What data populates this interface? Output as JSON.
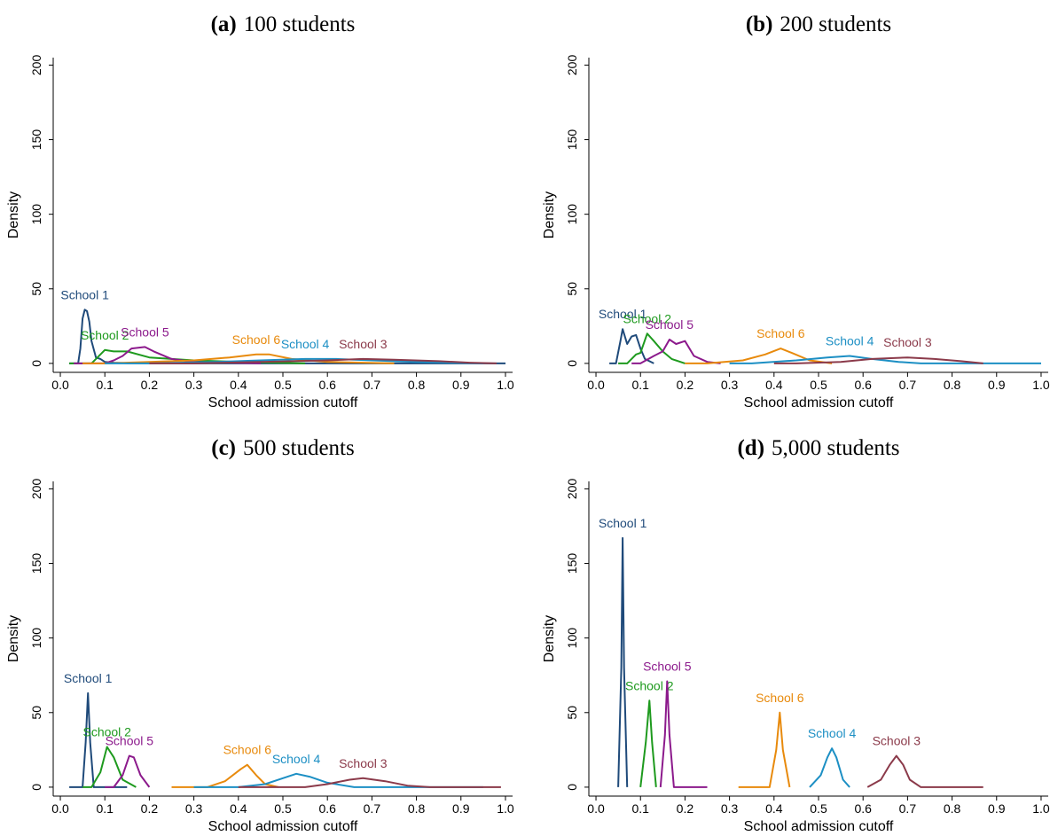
{
  "chart_data": [
    {
      "type": "line",
      "panel": "(a)",
      "title": "100 students",
      "xlabel": "School admission cutoff",
      "ylabel": "Density",
      "xlim": [
        -0.016,
        1.016
      ],
      "ylim": [
        -6,
        205
      ],
      "xticks": [
        {
          "value": 0,
          "label": "0.0"
        },
        0.1,
        0.2,
        0.3,
        0.4,
        0.5,
        0.6,
        0.7,
        0.8,
        0.9,
        {
          "value": 1,
          "label": "1.0"
        }
      ],
      "yticks": [
        0,
        50,
        100,
        150,
        200
      ],
      "series": [
        {
          "name": "School 1",
          "color": "#1f4a7a",
          "x": [
            0.02,
            0.04,
            0.045,
            0.05,
            0.055,
            0.06,
            0.065,
            0.07,
            0.08,
            0.09,
            0.1,
            0.12,
            0.15,
            0.3,
            0.6,
            1.0
          ],
          "values": [
            0,
            0,
            10,
            30,
            36,
            35,
            28,
            15,
            4,
            3,
            1,
            0.5,
            0.2,
            0,
            0,
            0
          ]
        },
        {
          "name": "School 2",
          "color": "#1e9a1e",
          "x": [
            0.02,
            0.07,
            0.1,
            0.12,
            0.15,
            0.2,
            0.25,
            0.3,
            0.4,
            0.55
          ],
          "values": [
            0,
            0,
            9,
            8,
            8,
            4,
            3,
            2,
            1,
            0
          ]
        },
        {
          "name": "School 5",
          "color": "#8c1a8c",
          "x": [
            0.03,
            0.1,
            0.12,
            0.14,
            0.16,
            0.19,
            0.21,
            0.25,
            0.3,
            0.45
          ],
          "values": [
            0,
            0,
            2,
            5,
            10,
            11,
            8,
            3,
            1,
            0
          ]
        },
        {
          "name": "School 6",
          "color": "#e88a0c",
          "x": [
            0.05,
            0.1,
            0.2,
            0.3,
            0.38,
            0.44,
            0.47,
            0.52,
            0.6,
            0.75
          ],
          "values": [
            0,
            0,
            1,
            2,
            4,
            6,
            6,
            3,
            1,
            0
          ]
        },
        {
          "name": "School 4",
          "color": "#1c8fc4",
          "x": [
            0.1,
            0.2,
            0.35,
            0.45,
            0.55,
            0.62,
            0.7,
            0.8,
            0.95
          ],
          "values": [
            0,
            0,
            1,
            2,
            3,
            3,
            2,
            1,
            0
          ]
        },
        {
          "name": "School 3",
          "color": "#8b3a4a",
          "x": [
            0.2,
            0.3,
            0.45,
            0.6,
            0.68,
            0.75,
            0.85,
            0.92,
            0.98
          ],
          "values": [
            0,
            0,
            1,
            2,
            3,
            2.5,
            1.5,
            0.5,
            0
          ]
        }
      ]
    },
    {
      "type": "line",
      "panel": "(b)",
      "title": "200 students",
      "xlabel": "School admission cutoff",
      "ylabel": "Density",
      "xlim": [
        -0.016,
        1.016
      ],
      "ylim": [
        -6,
        205
      ],
      "xticks": [
        {
          "value": 0,
          "label": "0.0"
        },
        0.1,
        0.2,
        0.3,
        0.4,
        0.5,
        0.6,
        0.7,
        0.8,
        0.9,
        {
          "value": 1,
          "label": "1.0"
        }
      ],
      "yticks": [
        0,
        50,
        100,
        150,
        200
      ],
      "series": [
        {
          "name": "School 1",
          "color": "#1f4a7a",
          "x": [
            0.03,
            0.045,
            0.055,
            0.06,
            0.07,
            0.08,
            0.09,
            0.1,
            0.11,
            0.13
          ],
          "values": [
            0,
            0,
            15,
            23,
            13,
            18,
            19,
            10,
            3,
            0
          ]
        },
        {
          "name": "School 2",
          "color": "#1e9a1e",
          "x": [
            0.05,
            0.07,
            0.09,
            0.1,
            0.115,
            0.13,
            0.15,
            0.17,
            0.2
          ],
          "values": [
            0,
            0,
            6,
            7,
            20,
            15,
            8,
            3,
            0
          ]
        },
        {
          "name": "School 5",
          "color": "#8c1a8c",
          "x": [
            0.08,
            0.1,
            0.13,
            0.15,
            0.165,
            0.18,
            0.2,
            0.22,
            0.25,
            0.28
          ],
          "values": [
            0,
            0,
            5,
            8,
            16,
            13,
            15,
            5,
            1,
            0
          ]
        },
        {
          "name": "School 6",
          "color": "#e88a0c",
          "x": [
            0.2,
            0.25,
            0.33,
            0.38,
            0.415,
            0.44,
            0.48,
            0.53
          ],
          "values": [
            0,
            0,
            2,
            6,
            10,
            7,
            2,
            0
          ]
        },
        {
          "name": "School 4",
          "color": "#1c8fc4",
          "x": [
            0.3,
            0.35,
            0.45,
            0.52,
            0.57,
            0.62,
            0.68,
            0.73,
            1.0
          ],
          "values": [
            0,
            0,
            2,
            4,
            5,
            3,
            1,
            0,
            0
          ]
        },
        {
          "name": "School 3",
          "color": "#8b3a4a",
          "x": [
            0.4,
            0.45,
            0.55,
            0.62,
            0.7,
            0.76,
            0.82,
            0.87
          ],
          "values": [
            0,
            0,
            1,
            3,
            4,
            3,
            1.5,
            0
          ]
        }
      ]
    },
    {
      "type": "line",
      "panel": "(c)",
      "title": "500 students",
      "xlabel": "School admission cutoff",
      "ylabel": "Density",
      "xlim": [
        -0.016,
        1.016
      ],
      "ylim": [
        -6,
        205
      ],
      "xticks": [
        {
          "value": 0,
          "label": "0.0"
        },
        0.1,
        0.2,
        0.3,
        0.4,
        0.5,
        0.6,
        0.7,
        0.8,
        0.9,
        {
          "value": 1,
          "label": "1.0"
        }
      ],
      "yticks": [
        0,
        50,
        100,
        150,
        200
      ],
      "series": [
        {
          "name": "School 1",
          "color": "#1f4a7a",
          "x": [
            0.02,
            0.05,
            0.057,
            0.062,
            0.067,
            0.075,
            0.15
          ],
          "values": [
            0,
            0,
            30,
            63,
            30,
            0,
            0
          ]
        },
        {
          "name": "School 2",
          "color": "#1e9a1e",
          "x": [
            0.05,
            0.07,
            0.09,
            0.105,
            0.12,
            0.14,
            0.17
          ],
          "values": [
            0,
            0,
            10,
            27,
            20,
            5,
            0
          ]
        },
        {
          "name": "School 5",
          "color": "#8c1a8c",
          "x": [
            0.1,
            0.12,
            0.14,
            0.155,
            0.165,
            0.18,
            0.2
          ],
          "values": [
            0,
            0,
            8,
            21,
            20,
            8,
            0
          ]
        },
        {
          "name": "School 6",
          "color": "#e88a0c",
          "x": [
            0.25,
            0.33,
            0.37,
            0.405,
            0.42,
            0.44,
            0.46,
            0.49
          ],
          "values": [
            0,
            0,
            4,
            12,
            15,
            8,
            2,
            0
          ]
        },
        {
          "name": "School 4",
          "color": "#1c8fc4",
          "x": [
            0.3,
            0.4,
            0.46,
            0.5,
            0.53,
            0.56,
            0.6,
            0.66,
            0.95
          ],
          "values": [
            0,
            0,
            2,
            6,
            9,
            7,
            3,
            0,
            0
          ]
        },
        {
          "name": "School 3",
          "color": "#8b3a4a",
          "x": [
            0.4,
            0.55,
            0.6,
            0.65,
            0.68,
            0.73,
            0.78,
            0.83,
            0.99
          ],
          "values": [
            0,
            0,
            2,
            5,
            6,
            4,
            1,
            0,
            0
          ]
        }
      ]
    },
    {
      "type": "line",
      "panel": "(d)",
      "title": "5,000 students",
      "xlabel": "School admission cutoff",
      "ylabel": "Density",
      "xlim": [
        -0.016,
        1.016
      ],
      "ylim": [
        -6,
        205
      ],
      "xticks": [
        {
          "value": 0,
          "label": "0.0"
        },
        0.1,
        0.2,
        0.3,
        0.4,
        0.5,
        0.6,
        0.7,
        0.8,
        0.9,
        {
          "value": 1,
          "label": "1.0"
        }
      ],
      "yticks": [
        0,
        50,
        100,
        150,
        200
      ],
      "series": [
        {
          "name": "School 1",
          "color": "#1f4a7a",
          "x": [
            0.05,
            0.057,
            0.06,
            0.063,
            0.07
          ],
          "values": [
            0,
            80,
            167,
            80,
            0
          ]
        },
        {
          "name": "School 2",
          "color": "#1e9a1e",
          "x": [
            0.1,
            0.112,
            0.12,
            0.126,
            0.135
          ],
          "values": [
            0,
            30,
            58,
            30,
            0
          ]
        },
        {
          "name": "School 5",
          "color": "#8c1a8c",
          "x": [
            0.145,
            0.155,
            0.16,
            0.165,
            0.175,
            0.25
          ],
          "values": [
            0,
            35,
            71,
            35,
            0,
            0
          ]
        },
        {
          "name": "School 6",
          "color": "#e88a0c",
          "x": [
            0.32,
            0.39,
            0.405,
            0.413,
            0.42,
            0.435
          ],
          "values": [
            0,
            0,
            25,
            50,
            25,
            0
          ]
        },
        {
          "name": "School 4",
          "color": "#1c8fc4",
          "x": [
            0.48,
            0.505,
            0.52,
            0.53,
            0.54,
            0.555,
            0.57
          ],
          "values": [
            0,
            8,
            20,
            26,
            20,
            5,
            0
          ]
        },
        {
          "name": "School 3",
          "color": "#8b3a4a",
          "x": [
            0.61,
            0.64,
            0.66,
            0.675,
            0.69,
            0.705,
            0.73,
            0.87
          ],
          "values": [
            0,
            5,
            15,
            21,
            15,
            5,
            0,
            0
          ]
        }
      ]
    }
  ]
}
